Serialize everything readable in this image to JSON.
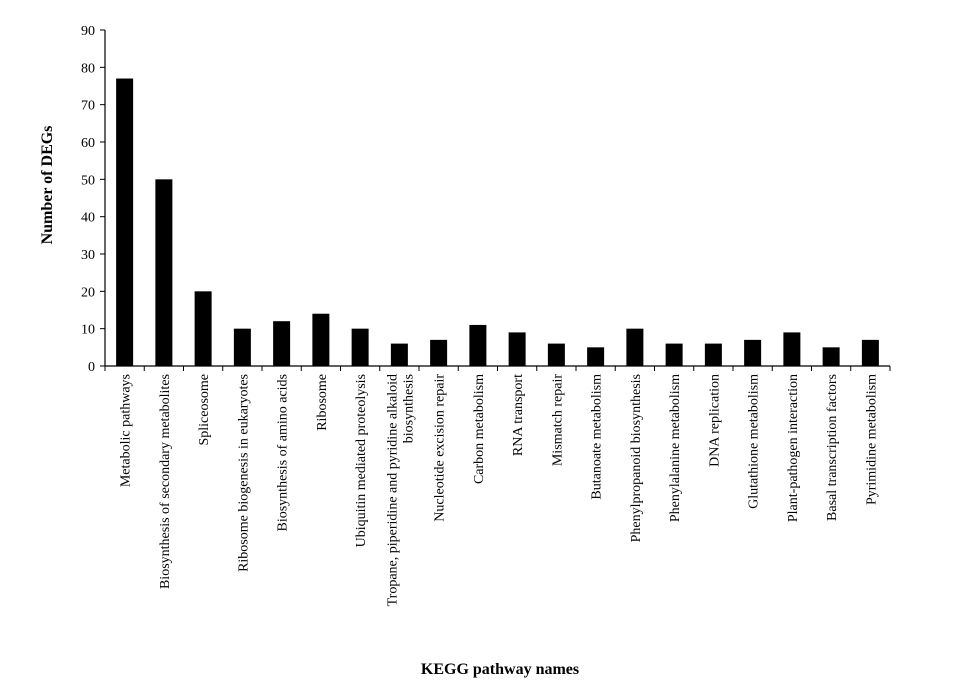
{
  "chart_data": {
    "type": "bar",
    "title": "",
    "xlabel": "KEGG pathway names",
    "ylabel": "Number of DEGs",
    "ylim": [
      0,
      90
    ],
    "yticks": [
      0,
      10,
      20,
      30,
      40,
      50,
      60,
      70,
      80,
      90
    ],
    "grid": false,
    "bar_color": "#000000",
    "categories": [
      [
        "Metabolic pathways"
      ],
      [
        "Biosynthesis of secondary metabolites"
      ],
      [
        "Spliceosome"
      ],
      [
        "Ribosome biogenesis in eukaryotes"
      ],
      [
        "Biosynthesis of amino acids"
      ],
      [
        "Ribosome"
      ],
      [
        "Ubiquitin mediated proteolysis"
      ],
      [
        "Tropane, piperidine and pyridine alkaloid",
        "biosynthesis"
      ],
      [
        "Nucleotide excision repair"
      ],
      [
        "Carbon metabolism"
      ],
      [
        "RNA transport"
      ],
      [
        "Mismatch repair"
      ],
      [
        "Butanoate metabolism"
      ],
      [
        "Phenylpropanoid biosynthesis"
      ],
      [
        "Phenylalanine metabolism"
      ],
      [
        "DNA replication"
      ],
      [
        "Glutathione metabolism"
      ],
      [
        "Plant-pathogen interaction"
      ],
      [
        "Basal transcription factors"
      ],
      [
        "Pyrimidine metabolism"
      ]
    ],
    "values": [
      77,
      50,
      20,
      10,
      12,
      14,
      10,
      6,
      7,
      11,
      9,
      6,
      5,
      10,
      6,
      6,
      7,
      9,
      5,
      7
    ]
  }
}
